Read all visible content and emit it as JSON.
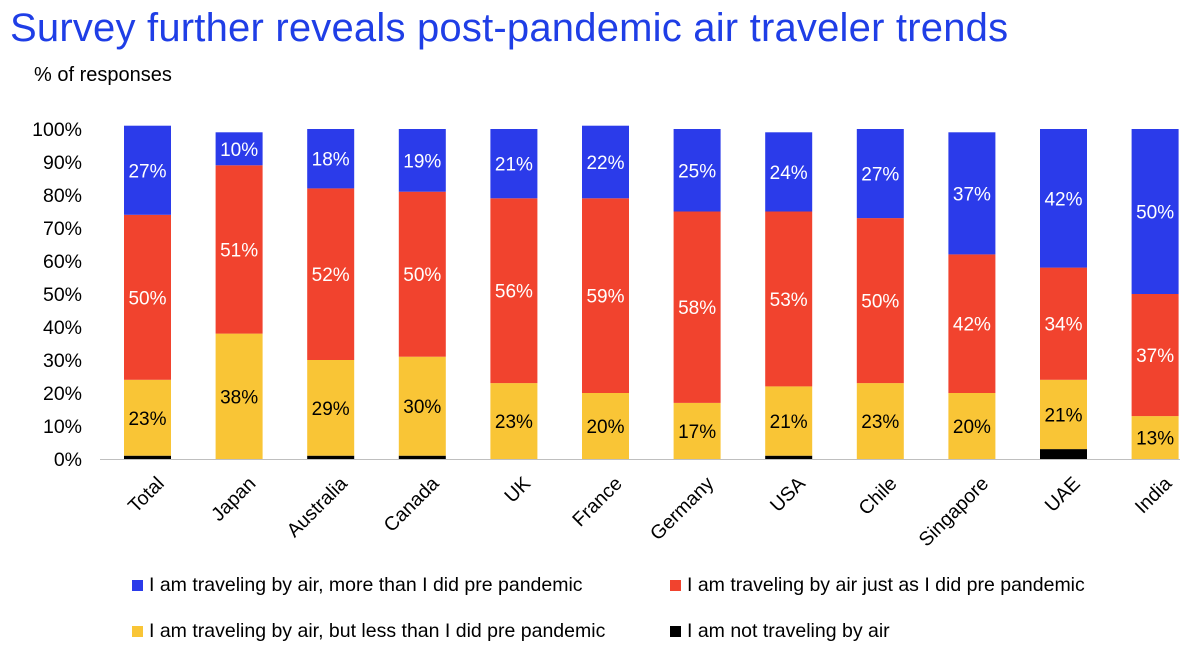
{
  "title": "Survey further reveals post-pandemic air traveler trends",
  "chart_data": {
    "type": "bar",
    "stacked": true,
    "title": "Survey further reveals post-pandemic air traveler trends",
    "ylabel": "% of responses",
    "xlabel": "",
    "ylim": [
      0,
      100
    ],
    "yticks": [
      "0%",
      "10%",
      "20%",
      "30%",
      "40%",
      "50%",
      "60%",
      "70%",
      "80%",
      "90%",
      "100%"
    ],
    "categories": [
      "Total",
      "Japan",
      "Australia",
      "Canada",
      "UK",
      "France",
      "Germany",
      "USA",
      "Chile",
      "Singapore",
      "UAE",
      "India"
    ],
    "series": [
      {
        "name": "I am not traveling by air",
        "color": "#000000",
        "values": [
          1,
          0,
          1,
          1,
          0,
          0,
          0,
          1,
          0,
          0,
          3,
          0
        ],
        "labels": [
          "",
          "",
          "",
          "",
          "",
          "",
          "",
          "",
          "",
          "",
          "",
          ""
        ]
      },
      {
        "name": "I am traveling by air, but less than I did pre pandemic",
        "color": "#f9c536",
        "values": [
          23,
          38,
          29,
          30,
          23,
          20,
          17,
          21,
          23,
          20,
          21,
          13
        ],
        "labels": [
          "23%",
          "38%",
          "29%",
          "30%",
          "23%",
          "20%",
          "17%",
          "21%",
          "23%",
          "20%",
          "21%",
          "13%"
        ]
      },
      {
        "name": "I am traveling by air just as I did pre pandemic",
        "color": "#f1432e",
        "values": [
          50,
          51,
          52,
          50,
          56,
          59,
          58,
          53,
          50,
          42,
          34,
          37
        ],
        "labels": [
          "50%",
          "51%",
          "52%",
          "50%",
          "56%",
          "59%",
          "58%",
          "53%",
          "50%",
          "42%",
          "34%",
          "37%"
        ]
      },
      {
        "name": "I am traveling by air, more than I did pre pandemic",
        "color": "#2b3bea",
        "values": [
          27,
          10,
          18,
          19,
          21,
          22,
          25,
          24,
          27,
          37,
          42,
          50
        ],
        "labels": [
          "27%",
          "10%",
          "18%",
          "19%",
          "21%",
          "22%",
          "25%",
          "24%",
          "27%",
          "37%",
          "42%",
          "50%"
        ]
      }
    ],
    "label_colors": [
      "#000000",
      "#000000",
      "#ffffff",
      "#ffffff"
    ],
    "legend": [
      {
        "label": "I am traveling by air, more than I did pre pandemic",
        "color": "#2b3bea"
      },
      {
        "label": "I am traveling by air just as I did pre pandemic",
        "color": "#f1432e"
      },
      {
        "label": "I am traveling by air, but less than I did pre pandemic",
        "color": "#f9c536"
      },
      {
        "label": "I am not traveling by air",
        "color": "#000000"
      }
    ],
    "legend_position": "bottom"
  }
}
